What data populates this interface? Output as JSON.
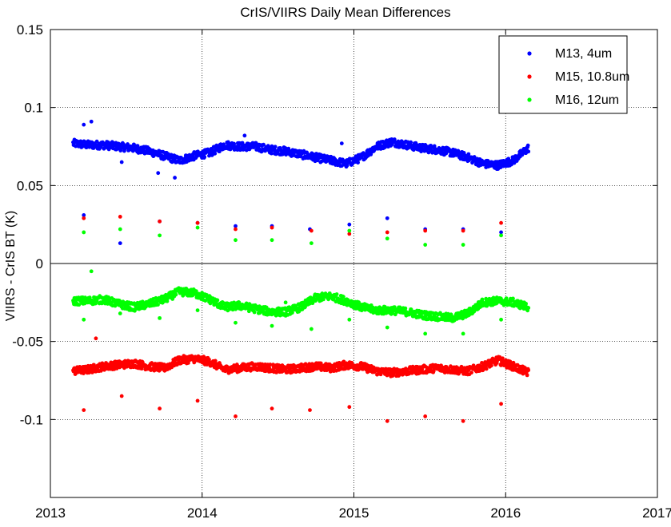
{
  "chart_data": {
    "type": "scatter",
    "title": "CrIS/VIIRS Daily Mean Differences",
    "xlabel": "",
    "ylabel": "VIIRS - CrIS BT (K)",
    "xlim": [
      2013,
      2017
    ],
    "ylim": [
      -0.15,
      0.15
    ],
    "x_ticks": [
      2013,
      2014,
      2015,
      2016,
      2017
    ],
    "x_tick_labels": [
      "2013",
      "2014",
      "2015",
      "2016",
      "2017"
    ],
    "y_ticks": [
      0.15,
      0.1,
      0.05,
      0,
      -0.05,
      -0.1
    ],
    "y_tick_labels": [
      "0.15",
      "0.1",
      "0.05",
      "0",
      "-0.05",
      "-0.1"
    ],
    "grid": true,
    "zero_line": true,
    "legend_position": "top-right",
    "series": [
      {
        "name": "M13, 4um",
        "color": "#0000ff",
        "x": [
          2013.15,
          2013.25,
          2013.35,
          2013.45,
          2013.55,
          2013.65,
          2013.75,
          2013.85,
          2013.95,
          2014.05,
          2014.15,
          2014.25,
          2014.35,
          2014.45,
          2014.55,
          2014.65,
          2014.75,
          2014.85,
          2014.95,
          2015.05,
          2015.15,
          2015.25,
          2015.35,
          2015.45,
          2015.55,
          2015.65,
          2015.75,
          2015.85,
          2015.95,
          2016.05,
          2016.15
        ],
        "values": [
          0.077,
          0.076,
          0.076,
          0.075,
          0.074,
          0.072,
          0.069,
          0.066,
          0.069,
          0.071,
          0.076,
          0.075,
          0.075,
          0.073,
          0.072,
          0.07,
          0.068,
          0.066,
          0.064,
          0.068,
          0.075,
          0.078,
          0.076,
          0.074,
          0.073,
          0.071,
          0.068,
          0.064,
          0.063,
          0.066,
          0.074
        ],
        "outliers_x": [
          2013.22,
          2013.27,
          2013.47,
          2013.71,
          2013.82,
          2014.28,
          2014.92,
          2013.22,
          2013.46,
          2013.72,
          2013.97,
          2014.22,
          2014.46,
          2014.71,
          2014.97,
          2015.22,
          2015.47,
          2015.72,
          2015.97
        ],
        "outliers_y": [
          0.089,
          0.091,
          0.065,
          0.058,
          0.055,
          0.082,
          0.077,
          0.031,
          0.013,
          0.027,
          0.026,
          0.024,
          0.024,
          0.022,
          0.025,
          0.029,
          0.022,
          0.022,
          0.02
        ]
      },
      {
        "name": "M15, 10.8um",
        "color": "#ff0000",
        "x": [
          2013.15,
          2013.25,
          2013.35,
          2013.45,
          2013.55,
          2013.65,
          2013.75,
          2013.85,
          2013.95,
          2014.05,
          2014.15,
          2014.25,
          2014.35,
          2014.45,
          2014.55,
          2014.65,
          2014.75,
          2014.85,
          2014.95,
          2015.05,
          2015.15,
          2015.25,
          2015.35,
          2015.45,
          2015.55,
          2015.65,
          2015.75,
          2015.85,
          2015.95,
          2016.05,
          2016.15
        ],
        "values": [
          -0.069,
          -0.068,
          -0.066,
          -0.065,
          -0.064,
          -0.066,
          -0.067,
          -0.062,
          -0.061,
          -0.063,
          -0.068,
          -0.067,
          -0.066,
          -0.067,
          -0.068,
          -0.067,
          -0.066,
          -0.067,
          -0.065,
          -0.066,
          -0.069,
          -0.07,
          -0.069,
          -0.068,
          -0.067,
          -0.068,
          -0.069,
          -0.066,
          -0.062,
          -0.066,
          -0.07
        ],
        "outliers_x": [
          2013.22,
          2013.46,
          2013.72,
          2013.97,
          2014.22,
          2014.46,
          2014.72,
          2014.97,
          2015.22,
          2015.47,
          2015.72,
          2015.97,
          2013.22,
          2013.47,
          2013.72,
          2013.97,
          2014.22,
          2014.46,
          2014.71,
          2014.97,
          2015.22,
          2015.47,
          2015.72,
          2015.97,
          2013.3
        ],
        "outliers_y": [
          0.029,
          0.03,
          0.027,
          0.026,
          0.022,
          0.023,
          0.021,
          0.019,
          0.02,
          0.021,
          0.021,
          0.026,
          -0.094,
          -0.085,
          -0.093,
          -0.088,
          -0.098,
          -0.093,
          -0.094,
          -0.092,
          -0.101,
          -0.098,
          -0.101,
          -0.09,
          -0.048
        ]
      },
      {
        "name": "M16, 12um",
        "color": "#00ff00",
        "x": [
          2013.15,
          2013.25,
          2013.35,
          2013.45,
          2013.55,
          2013.65,
          2013.75,
          2013.85,
          2013.95,
          2014.05,
          2014.15,
          2014.25,
          2014.35,
          2014.45,
          2014.55,
          2014.65,
          2014.75,
          2014.85,
          2014.95,
          2015.05,
          2015.15,
          2015.25,
          2015.35,
          2015.45,
          2015.55,
          2015.65,
          2015.75,
          2015.85,
          2015.95,
          2016.05,
          2016.15
        ],
        "values": [
          -0.024,
          -0.024,
          -0.023,
          -0.026,
          -0.028,
          -0.026,
          -0.023,
          -0.018,
          -0.019,
          -0.023,
          -0.028,
          -0.027,
          -0.029,
          -0.031,
          -0.031,
          -0.028,
          -0.022,
          -0.021,
          -0.024,
          -0.028,
          -0.03,
          -0.03,
          -0.031,
          -0.033,
          -0.034,
          -0.035,
          -0.032,
          -0.025,
          -0.024,
          -0.025,
          -0.028
        ],
        "outliers_x": [
          2013.22,
          2013.46,
          2013.72,
          2013.97,
          2014.22,
          2014.46,
          2014.72,
          2014.97,
          2015.22,
          2015.47,
          2015.72,
          2015.97,
          2013.22,
          2013.46,
          2013.72,
          2013.97,
          2014.22,
          2014.46,
          2014.72,
          2014.97,
          2015.22,
          2015.47,
          2015.72,
          2015.97,
          2013.27,
          2014.55
        ],
        "outliers_y": [
          0.02,
          0.022,
          0.018,
          0.023,
          0.015,
          0.015,
          0.013,
          0.021,
          0.016,
          0.012,
          0.012,
          0.018,
          -0.036,
          -0.032,
          -0.035,
          -0.03,
          -0.038,
          -0.04,
          -0.042,
          -0.036,
          -0.041,
          -0.045,
          -0.045,
          -0.036,
          -0.005,
          -0.025
        ]
      }
    ]
  }
}
